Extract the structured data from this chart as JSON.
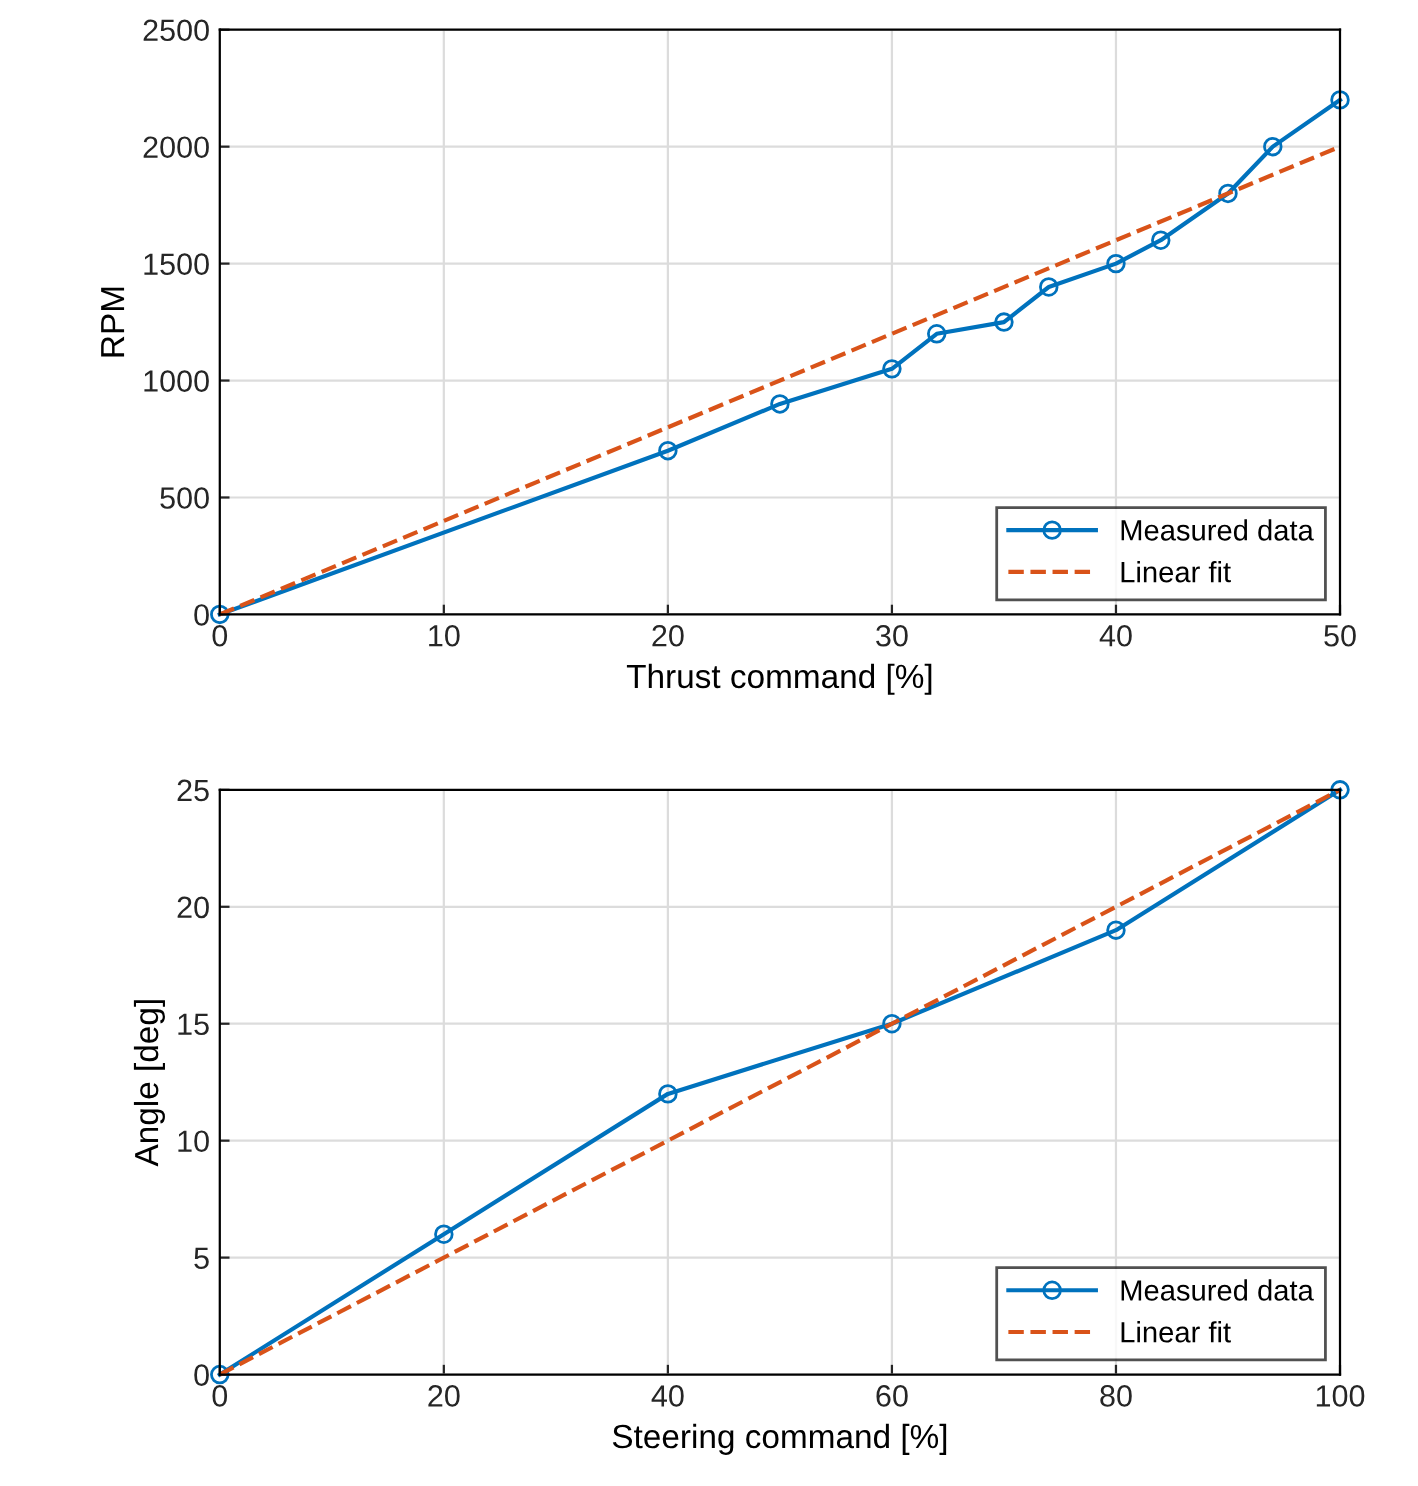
{
  "chart_data": [
    {
      "type": "line",
      "xlabel": "Thrust command [%]",
      "ylabel": "RPM",
      "xlim": [
        0,
        50
      ],
      "ylim": [
        0,
        2500
      ],
      "xticks": [
        0,
        10,
        20,
        30,
        40,
        50
      ],
      "yticks": [
        0,
        500,
        1000,
        1500,
        2000,
        2500
      ],
      "grid": true,
      "legend": "bottom right",
      "series": [
        {
          "name": "Measured data",
          "color": "#0072bd",
          "marker": "circle",
          "line_style": "solid",
          "x": [
            0,
            20,
            25,
            30,
            32,
            35,
            37,
            40,
            42,
            45,
            47,
            50
          ],
          "values": [
            0,
            700,
            900,
            1050,
            1200,
            1250,
            1400,
            1500,
            1600,
            1800,
            2000,
            2200
          ]
        },
        {
          "name": "Linear fit",
          "color": "#d95319",
          "marker": "none",
          "line_style": "dashed",
          "x": [
            0,
            50
          ],
          "values": [
            0,
            2000
          ]
        }
      ]
    },
    {
      "type": "line",
      "xlabel": "Steering command [%]",
      "ylabel": "Angle [deg]",
      "xlim": [
        0,
        100
      ],
      "ylim": [
        0,
        25
      ],
      "xticks": [
        0,
        20,
        40,
        60,
        80,
        100
      ],
      "yticks": [
        0,
        5,
        10,
        15,
        20,
        25
      ],
      "grid": true,
      "legend": "bottom right",
      "series": [
        {
          "name": "Measured data",
          "color": "#0072bd",
          "marker": "circle",
          "line_style": "solid",
          "x": [
            0,
            20,
            40,
            60,
            80,
            100
          ],
          "values": [
            0,
            6,
            12,
            15,
            19,
            25
          ]
        },
        {
          "name": "Linear fit",
          "color": "#d95319",
          "marker": "none",
          "line_style": "dashed",
          "x": [
            0,
            100
          ],
          "values": [
            0,
            25
          ]
        }
      ]
    }
  ]
}
